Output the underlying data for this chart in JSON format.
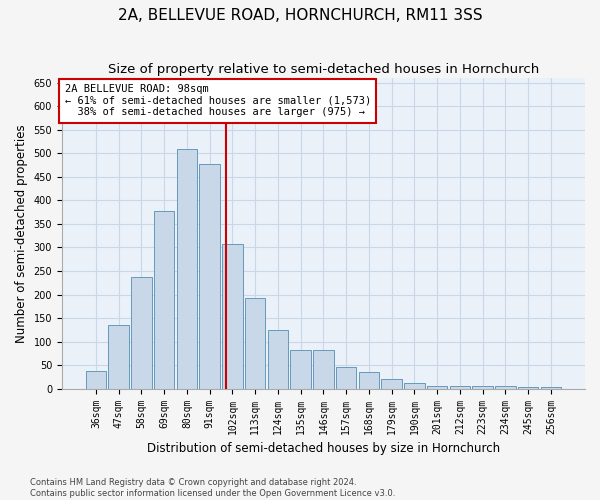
{
  "title1": "2A, BELLEVUE ROAD, HORNCHURCH, RM11 3SS",
  "title2": "Size of property relative to semi-detached houses in Hornchurch",
  "xlabel": "Distribution of semi-detached houses by size in Hornchurch",
  "ylabel": "Number of semi-detached properties",
  "footnote1": "Contains HM Land Registry data © Crown copyright and database right 2024.",
  "footnote2": "Contains public sector information licensed under the Open Government Licence v3.0.",
  "categories": [
    "36sqm",
    "47sqm",
    "58sqm",
    "69sqm",
    "80sqm",
    "91sqm",
    "102sqm",
    "113sqm",
    "124sqm",
    "135sqm",
    "146sqm",
    "157sqm",
    "168sqm",
    "179sqm",
    "190sqm",
    "201sqm",
    "212sqm",
    "223sqm",
    "234sqm",
    "245sqm",
    "256sqm"
  ],
  "values": [
    37,
    135,
    237,
    378,
    510,
    477,
    307,
    193,
    124,
    83,
    83,
    47,
    35,
    20,
    12,
    6,
    5,
    5,
    5,
    4,
    4
  ],
  "bar_color": "#c8d8e8",
  "bar_edge_color": "#6699bb",
  "property_label": "2A BELLEVUE ROAD: 98sqm",
  "pct_smaller": 61,
  "n_smaller": 1573,
  "pct_larger": 38,
  "n_larger": 975,
  "vline_color": "#cc0000",
  "vline_position": 5.7,
  "annotation_box_color": "#ffffff",
  "annotation_box_edge": "#cc0000",
  "ylim": [
    0,
    660
  ],
  "yticks": [
    0,
    50,
    100,
    150,
    200,
    250,
    300,
    350,
    400,
    450,
    500,
    550,
    600,
    650
  ],
  "grid_color": "#c8d8e8",
  "background_color": "#eaf1f8",
  "fig_background": "#f5f5f5",
  "title_fontsize": 11,
  "subtitle_fontsize": 9.5,
  "axis_label_fontsize": 8.5,
  "tick_fontsize": 7,
  "annotation_fontsize": 7.5,
  "footnote_fontsize": 6
}
